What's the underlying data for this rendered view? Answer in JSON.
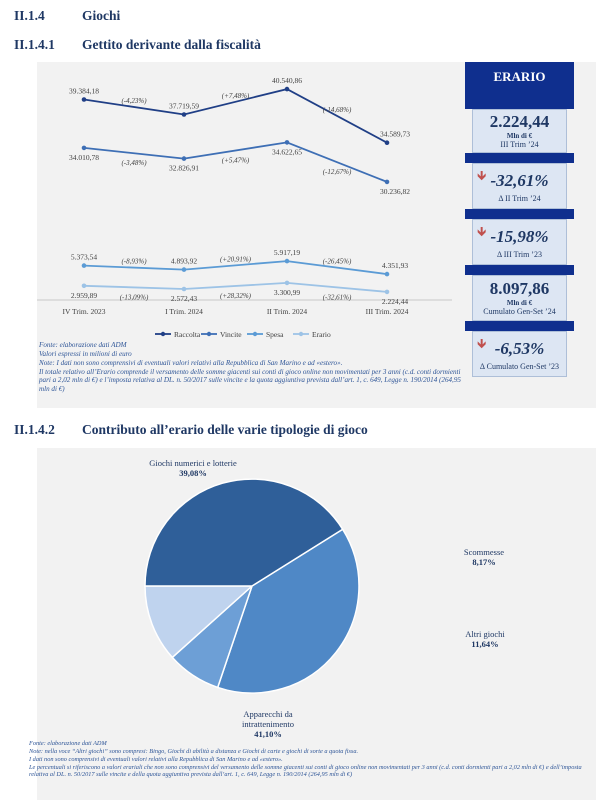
{
  "headings": {
    "h1": {
      "num": "II.1.4",
      "text": "Giochi"
    },
    "h2": {
      "num": "II.1.4.1",
      "text": "Gettito derivante dalla fiscalità"
    },
    "h3": {
      "num": "II.1.4.2",
      "text": "Contributo all’erario delle varie tipologie di gioco"
    }
  },
  "sidebar": {
    "title": "ERARIO",
    "boxes": [
      {
        "value": "2.224,44",
        "unit": "Mln di €",
        "caption": "III Trim ’24"
      },
      {
        "value": "-32,61%",
        "caption": "Δ II Trim ’24"
      },
      {
        "value": "-15,98%",
        "caption": "Δ III Trim ’23"
      },
      {
        "value": "8.097,86",
        "unit": "Mln di €",
        "caption": "Cumulato Gen-Set ’24"
      },
      {
        "value": "-6,53%",
        "caption": "Δ Cumulato Gen-Set ’23"
      }
    ],
    "arrow_icon": "down-arrow-icon",
    "colors": {
      "navy": "#0f2f8e",
      "box": "#dde6f3",
      "arrow": "#c0504d"
    }
  },
  "notes1": [
    "Fonte: elaborazione dati ADM",
    "Valori espressi in milioni di euro",
    "Note: I dati non sono comprensivi di eventuali valori relativi alla Repubblica di San Marino e ad «estero».",
    "Il totale relativo all’Erario comprende il versamento delle somme giacenti sui conti di gioco online non movimentati per 3 anni (c.d. conti dormienti pari a 2,02 mln di €) e l’imposta relativa al DL. n. 50/2017 sulle vincite e la quota aggiuntiva prevista dall’art. 1, c. 649, Legge n. 190/2014 (264,95 mln di €)"
  ],
  "notes2": [
    "Fonte: elaborazione dati ADM",
    "Note: nella voce “Altri giochi” sono compresi: Bingo, Giochi di abilità a distanza e Giochi di carte e giochi di sorte a quota fissa.",
    " I dati non sono comprensivi di eventuali valori relativi alla Repubblica di San Marino e ad «estero».",
    "Le percentuali si riferiscono a valori erariali che non sono comprensivi del versamento delle somme giacenti sui conti di gioco online non movimentati per 3 anni (c.d. conti dormienti pari a 2,02 mln di €) e dell’imposta relativa al DL. n. 50/2017 sulle vincite e della quota aggiuntiva prevista dall’art. 1, c. 649, Legge n. 190/2014 (264,95 mln di €)"
  ],
  "chart_data": [
    {
      "type": "line",
      "title": "",
      "categories": [
        "IV Trim. 2023",
        "I Trim. 2024",
        "II Trim. 2024",
        "III Trim. 2024"
      ],
      "legend_position": "bottom",
      "series": [
        {
          "name": "Raccolta",
          "color": "#203f86",
          "values": [
            39384.18,
            37719.59,
            40540.86,
            34589.73
          ],
          "labels": [
            "39.384,18",
            "37.719,59",
            "40.540,86",
            "34.589,73"
          ],
          "changes": [
            "(-4,23%)",
            "(+7,48%)",
            "(-14,68%)"
          ]
        },
        {
          "name": "Vincite",
          "color": "#3e6fb5",
          "values": [
            34010.78,
            32826.91,
            34622.65,
            30236.82
          ],
          "labels": [
            "34.010,78",
            "32.826,91",
            "34.622,65",
            "30.236,82"
          ],
          "changes": [
            "(-3,48%)",
            "(+5,47%)",
            "(-12,67%)"
          ]
        },
        {
          "name": "Spesa",
          "color": "#5b9bd5",
          "values": [
            5373.54,
            4893.92,
            5917.19,
            4351.93
          ],
          "labels": [
            "5.373,54",
            "4.893,92",
            "5.917,19",
            "4.351,93"
          ],
          "changes": [
            "(-8,93%)",
            "(+20,91%)",
            "(-26,45%)"
          ]
        },
        {
          "name": "Erario",
          "color": "#9dc3e6",
          "values": [
            2959.89,
            2572.43,
            3300.99,
            2224.44
          ],
          "labels": [
            "2.959,89",
            "2.572,43",
            "3.300,99",
            "2.224,44"
          ],
          "changes": [
            "(-13,09%)",
            "(+28,32%)",
            "(-32,61%)"
          ]
        }
      ]
    },
    {
      "type": "pie",
      "title": "",
      "slices": [
        {
          "name": "Giochi numerici e lotterie",
          "value": 39.08,
          "label": "39,08%",
          "color": "#4f88c6"
        },
        {
          "name": "Scommesse",
          "value": 8.17,
          "label": "8,17%",
          "color": "#6d9fd6"
        },
        {
          "name": "Altri giochi",
          "value": 11.64,
          "label": "11,64%",
          "color": "#bfd3ee"
        },
        {
          "name": "Apparecchi da intrattenimento",
          "value": 41.1,
          "label": "41,10%",
          "color": "#2f5f99"
        }
      ]
    }
  ]
}
